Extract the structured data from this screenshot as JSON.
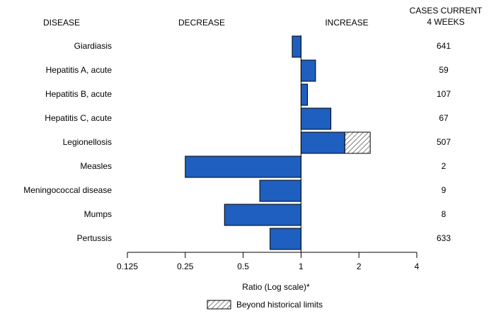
{
  "chart_data": {
    "type": "bar",
    "orientation": "horizontal",
    "log_scale": true,
    "headers": {
      "disease": "DISEASE",
      "decrease": "DECREASE",
      "increase": "INCREASE",
      "cases": [
        "CASES CURRENT",
        "4 WEEKS"
      ]
    },
    "categories": [
      "Giardiasis",
      "Hepatitis A, acute",
      "Hepatitis B, acute",
      "Hepatitis C, acute",
      "Legionellosis",
      "Measles",
      "Meningococcal disease",
      "Mumps",
      "Pertussis"
    ],
    "values": [
      0.9,
      1.19,
      1.08,
      1.43,
      2.29,
      0.25,
      0.61,
      0.4,
      0.69
    ],
    "historical_limit": [
      null,
      null,
      null,
      null,
      1.69,
      null,
      null,
      null,
      null
    ],
    "cases": [
      641,
      59,
      107,
      67,
      507,
      2,
      9,
      8,
      633
    ],
    "color": "#1f5fbf",
    "xlim": [
      0.125,
      4
    ],
    "xticks": [
      0.125,
      0.25,
      0.5,
      1,
      2,
      4
    ],
    "xlabel": "Ratio (Log scale)*",
    "legend": "Beyond historical limits"
  }
}
